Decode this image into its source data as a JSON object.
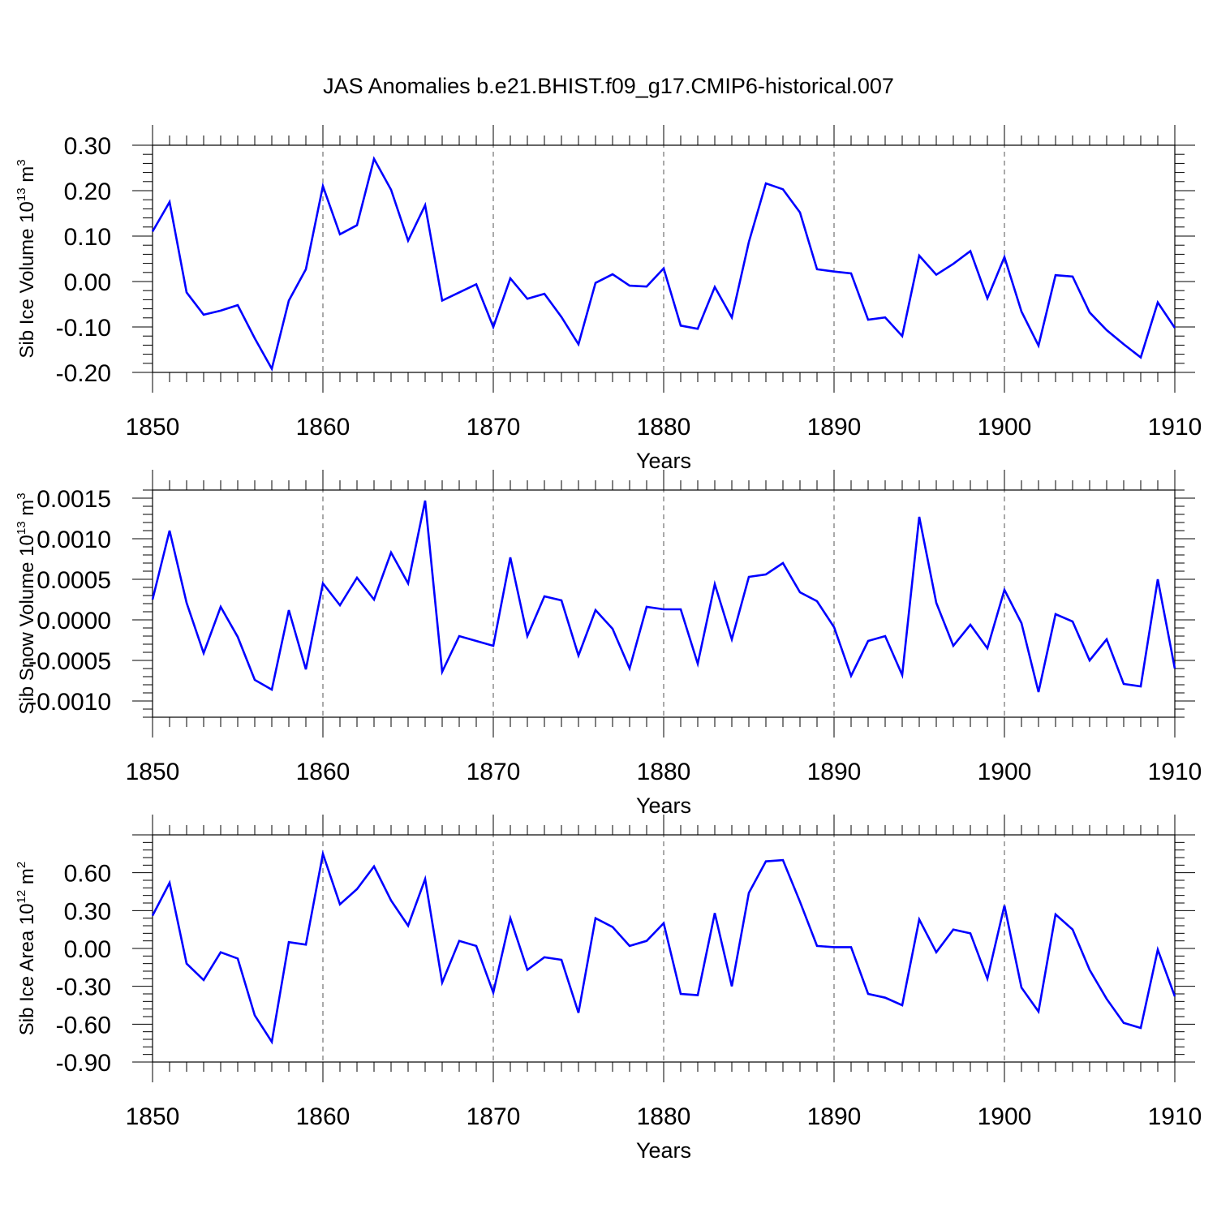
{
  "chart_data": {
    "title": "JAS Anomalies b.e21.BHIST.f09_g17.CMIP6-historical.007",
    "line_color": "#0000ff",
    "panels": [
      {
        "type": "line",
        "ylabel": "Sib Ice Volume 10",
        "ylabel_exp": "13",
        "ylabel_unit": " m",
        "ylabel_unit_exp": "3",
        "xlabel": "Years",
        "xlim": [
          1850,
          1910
        ],
        "ylim": [
          -0.2,
          0.3
        ],
        "x_ticks": [
          "1850",
          "1860",
          "1870",
          "1880",
          "1890",
          "1900",
          "1910"
        ],
        "y_ticks": [
          {
            "v": 0.3,
            "label": "0.30"
          },
          {
            "v": 0.2,
            "label": "0.20"
          },
          {
            "v": 0.1,
            "label": "0.10"
          },
          {
            "v": 0.0,
            "label": "0.00"
          },
          {
            "v": -0.1,
            "label": "-0.10"
          },
          {
            "v": -0.2,
            "label": "-0.20"
          }
        ],
        "series": [
          {
            "name": "Sib Ice Volume",
            "x_start": 1850,
            "values": [
              0.11,
              0.175,
              -0.024,
              -0.073,
              -0.064,
              -0.052,
              -0.125,
              -0.192,
              -0.042,
              0.027,
              0.21,
              0.104,
              0.124,
              0.27,
              0.202,
              0.09,
              0.168,
              -0.042,
              -0.024,
              -0.006,
              -0.1,
              0.007,
              -0.038,
              -0.027,
              -0.078,
              -0.138,
              -0.003,
              0.016,
              -0.009,
              -0.011,
              0.029,
              -0.097,
              -0.104,
              -0.012,
              -0.079,
              0.087,
              0.216,
              0.203,
              0.152,
              0.027,
              0.022,
              0.018,
              -0.084,
              -0.079,
              -0.12,
              0.057,
              0.015,
              0.039,
              0.067,
              -0.037,
              0.054,
              -0.066,
              -0.141,
              0.014,
              0.011,
              -0.068,
              -0.107,
              -0.138,
              -0.167,
              -0.046,
              -0.102
            ]
          }
        ]
      },
      {
        "type": "line",
        "ylabel": "Sib Snow Volume 10",
        "ylabel_exp": "13",
        "ylabel_unit": " m",
        "ylabel_unit_exp": "3",
        "xlabel": "Years",
        "xlim": [
          1850,
          1910
        ],
        "ylim": [
          -0.0012,
          0.0016
        ],
        "x_ticks": [
          "1850",
          "1860",
          "1870",
          "1880",
          "1890",
          "1900",
          "1910"
        ],
        "y_ticks": [
          {
            "v": 0.0015,
            "label": "0.0015"
          },
          {
            "v": 0.001,
            "label": "0.0010"
          },
          {
            "v": 0.0005,
            "label": "0.0005"
          },
          {
            "v": 0.0,
            "label": "0.0000"
          },
          {
            "v": -0.0005,
            "label": "-0.0005"
          },
          {
            "v": -0.001,
            "label": "-0.0010"
          }
        ],
        "series": [
          {
            "name": "Sib Snow Volume",
            "x_start": 1850,
            "values": [
              0.00025,
              0.0011,
              0.00021,
              -0.00041,
              0.00016,
              -0.00021,
              -0.00074,
              -0.00086,
              0.00012,
              -0.00061,
              0.00045,
              0.00018,
              0.00052,
              0.00025,
              0.00083,
              0.00045,
              0.00147,
              -0.00064,
              -0.0002,
              -0.00026,
              -0.00032,
              0.00077,
              -0.0002,
              0.00029,
              0.00024,
              -0.00044,
              0.00012,
              -0.00011,
              -0.0006,
              0.00016,
              0.00013,
              0.00013,
              -0.00054,
              0.00044,
              -0.00024,
              0.00053,
              0.00056,
              0.0007,
              0.00034,
              0.00023,
              -9e-05,
              -0.00069,
              -0.00026,
              -0.0002,
              -0.00068,
              0.00127,
              0.00021,
              -0.00032,
              -6e-05,
              -0.00035,
              0.00037,
              -4e-05,
              -0.00089,
              7e-05,
              -2e-05,
              -0.0005,
              -0.00024,
              -0.00079,
              -0.00082,
              0.0005,
              -0.0006
            ]
          }
        ]
      },
      {
        "type": "line",
        "ylabel": "Sib Ice Area 10",
        "ylabel_exp": "12",
        "ylabel_unit": " m",
        "ylabel_unit_exp": "2",
        "xlabel": "Years",
        "xlim": [
          1850,
          1910
        ],
        "ylim": [
          -0.9,
          0.9
        ],
        "x_ticks": [
          "1850",
          "1860",
          "1870",
          "1880",
          "1890",
          "1900",
          "1910"
        ],
        "y_ticks": [
          {
            "v": 0.6,
            "label": "0.60"
          },
          {
            "v": 0.3,
            "label": "0.30"
          },
          {
            "v": 0.0,
            "label": "0.00"
          },
          {
            "v": -0.3,
            "label": "-0.30"
          },
          {
            "v": -0.6,
            "label": "-0.60"
          },
          {
            "v": -0.9,
            "label": "-0.90"
          }
        ],
        "series": [
          {
            "name": "Sib Ice Area",
            "x_start": 1850,
            "values": [
              0.26,
              0.52,
              -0.12,
              -0.25,
              -0.03,
              -0.08,
              -0.53,
              -0.74,
              0.05,
              0.03,
              0.75,
              0.35,
              0.47,
              0.65,
              0.38,
              0.18,
              0.55,
              -0.27,
              0.06,
              0.02,
              -0.35,
              0.24,
              -0.17,
              -0.07,
              -0.09,
              -0.51,
              0.24,
              0.17,
              0.02,
              0.06,
              0.2,
              -0.36,
              -0.37,
              0.28,
              -0.3,
              0.44,
              0.69,
              0.7,
              0.37,
              0.02,
              0.01,
              0.01,
              -0.36,
              -0.39,
              -0.45,
              0.23,
              -0.03,
              0.15,
              0.12,
              -0.24,
              0.34,
              -0.31,
              -0.5,
              0.27,
              0.15,
              -0.17,
              -0.4,
              -0.59,
              -0.63,
              -0.01,
              -0.38
            ]
          }
        ]
      }
    ]
  }
}
